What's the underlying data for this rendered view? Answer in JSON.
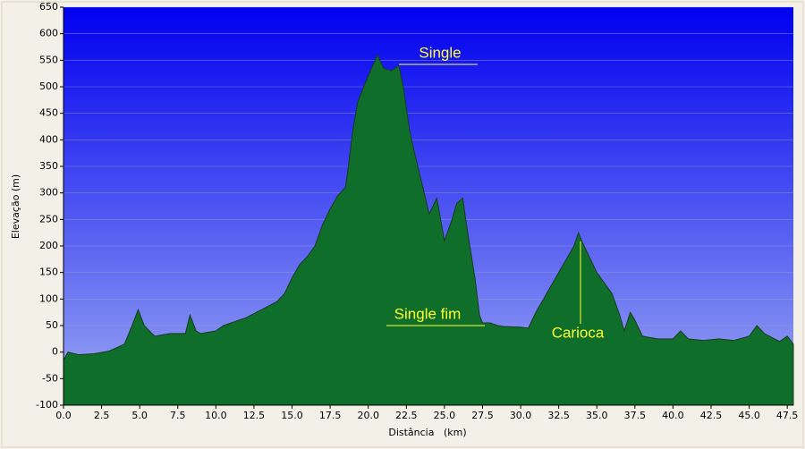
{
  "chart_data": {
    "type": "area",
    "xlabel": "Distância   (km)",
    "ylabel": "Elevação (m)",
    "x": [
      0,
      0.3,
      1,
      2,
      3,
      4,
      4.5,
      4.9,
      5.3,
      5.8,
      6,
      7,
      8,
      8.3,
      8.7,
      9,
      10,
      10.5,
      11,
      12,
      13,
      14,
      14.5,
      15,
      15.5,
      16,
      16.5,
      17,
      17.5,
      18,
      18.5,
      18.7,
      19,
      19.3,
      19.7,
      20,
      20.3,
      20.6,
      21,
      21.5,
      22,
      22.3,
      22.7,
      23,
      23.5,
      24,
      24.5,
      25,
      25.5,
      25.8,
      26.2,
      26.5,
      27,
      27.3,
      27.5,
      28,
      28.5,
      29,
      30,
      30.5,
      31,
      31.5,
      32,
      32.5,
      33,
      33.5,
      33.8,
      34,
      34.5,
      35,
      35.5,
      36,
      36.5,
      36.8,
      37.2,
      37.5,
      38,
      39,
      40,
      40.5,
      41,
      42,
      43,
      44,
      45,
      45.5,
      46,
      47,
      47.5,
      47.9
    ],
    "values": [
      -15,
      0,
      -5,
      -3,
      2,
      15,
      50,
      80,
      50,
      35,
      30,
      35,
      35,
      70,
      40,
      35,
      40,
      50,
      55,
      65,
      80,
      95,
      110,
      140,
      165,
      180,
      200,
      240,
      270,
      295,
      310,
      350,
      420,
      470,
      500,
      520,
      540,
      560,
      535,
      530,
      540,
      500,
      420,
      380,
      320,
      260,
      290,
      210,
      250,
      280,
      290,
      230,
      140,
      70,
      55,
      55,
      50,
      48,
      47,
      45,
      75,
      100,
      125,
      150,
      175,
      200,
      225,
      210,
      180,
      150,
      130,
      110,
      70,
      40,
      75,
      60,
      30,
      25,
      25,
      40,
      25,
      22,
      25,
      22,
      30,
      50,
      35,
      20,
      30,
      15
    ],
    "color": "#1e9a3c",
    "xlim": [
      0,
      47.9
    ],
    "xticks": [
      {
        "value": 0,
        "label": "0.0"
      },
      2.5,
      {
        "value": 5,
        "label": "5.0"
      },
      7.5,
      {
        "value": 10,
        "label": "10.0"
      },
      12.5,
      {
        "value": 15,
        "label": "15.0"
      },
      17.5,
      {
        "value": 20,
        "label": "20.0"
      },
      22.5,
      {
        "value": 25,
        "label": "25.0"
      },
      27.5,
      {
        "value": 30,
        "label": "30.0"
      },
      32.5,
      {
        "value": 35,
        "label": "35.0"
      },
      37.5,
      {
        "value": 40,
        "label": "40.0"
      },
      42.5,
      {
        "value": 45,
        "label": "45.0"
      },
      47.5
    ],
    "ylim": [
      -100,
      650
    ],
    "yticks": [
      -100,
      -50,
      0,
      50,
      100,
      150,
      200,
      250,
      300,
      350,
      400,
      450,
      500,
      550,
      600,
      650
    ],
    "grid": true,
    "annotations": [
      "Single",
      "Single fim",
      "Carioca"
    ]
  }
}
